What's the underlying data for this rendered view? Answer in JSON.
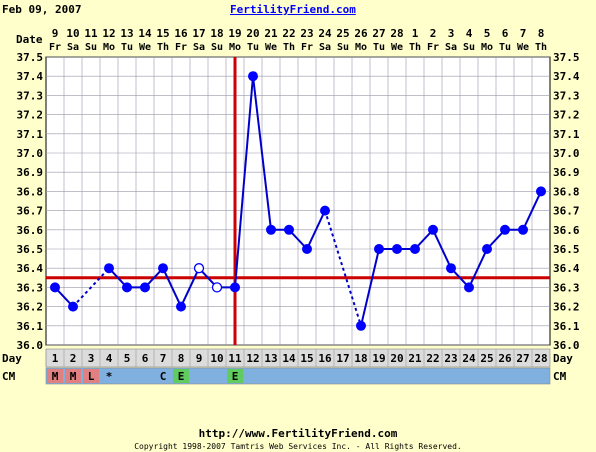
{
  "header": {
    "date": "Feb 09, 2007",
    "site": "FertilityFriend.com"
  },
  "footer": {
    "url": "http://www.FertilityFriend.com",
    "copyright": "Copyright 1998-2007 Tamtris Web Services Inc. - All Rights Reserved."
  },
  "colors": {
    "background": "#ffffcc",
    "plot_background": "#ffffff",
    "grid": "#9999aa",
    "line": "#0000cc",
    "marker": "#0000ff",
    "reference": "#cc0000",
    "cm_row": "#80b0e0",
    "cm_red": "#e08080",
    "cm_green": "#60cc60",
    "day_row": "#dcdcdc"
  },
  "chart_data": {
    "type": "line",
    "title": "",
    "row_labels": {
      "date": "Date",
      "day": "Day",
      "cm": "CM"
    },
    "dates": [
      "9",
      "10",
      "11",
      "12",
      "13",
      "14",
      "15",
      "16",
      "17",
      "18",
      "19",
      "20",
      "21",
      "22",
      "23",
      "24",
      "25",
      "26",
      "27",
      "28",
      "1",
      "2",
      "3",
      "4",
      "5",
      "6",
      "7",
      "8"
    ],
    "weekdays": [
      "Fr",
      "Sa",
      "Su",
      "Mo",
      "Tu",
      "We",
      "Th",
      "Fr",
      "Sa",
      "Su",
      "Mo",
      "Tu",
      "We",
      "Th",
      "Fr",
      "Sa",
      "Su",
      "Mo",
      "Tu",
      "We",
      "Th",
      "Fr",
      "Sa",
      "Su",
      "Mo",
      "Tu",
      "We",
      "Th"
    ],
    "cycle_days": [
      "1",
      "2",
      "3",
      "4",
      "5",
      "6",
      "7",
      "8",
      "9",
      "10",
      "11",
      "12",
      "13",
      "14",
      "15",
      "16",
      "17",
      "18",
      "19",
      "20",
      "21",
      "22",
      "23",
      "24",
      "25",
      "26",
      "27",
      "28"
    ],
    "ylim": [
      36.0,
      37.5
    ],
    "yticks": [
      "36.0",
      "36.1",
      "36.2",
      "36.3",
      "36.4",
      "36.5",
      "36.6",
      "36.7",
      "36.8",
      "36.9",
      "37.0",
      "37.1",
      "37.2",
      "37.3",
      "37.4",
      "37.5"
    ],
    "temperatures": [
      {
        "day": 1,
        "temp": 36.3,
        "kind": "filled"
      },
      {
        "day": 2,
        "temp": 36.2,
        "kind": "filled"
      },
      {
        "day": 4,
        "temp": 36.4,
        "kind": "filled"
      },
      {
        "day": 5,
        "temp": 36.3,
        "kind": "filled"
      },
      {
        "day": 6,
        "temp": 36.3,
        "kind": "filled"
      },
      {
        "day": 7,
        "temp": 36.4,
        "kind": "filled"
      },
      {
        "day": 8,
        "temp": 36.2,
        "kind": "filled"
      },
      {
        "day": 9,
        "temp": 36.4,
        "kind": "open"
      },
      {
        "day": 10,
        "temp": 36.3,
        "kind": "open"
      },
      {
        "day": 11,
        "temp": 36.3,
        "kind": "filled"
      },
      {
        "day": 12,
        "temp": 37.4,
        "kind": "filled"
      },
      {
        "day": 13,
        "temp": 36.6,
        "kind": "filled"
      },
      {
        "day": 14,
        "temp": 36.6,
        "kind": "filled"
      },
      {
        "day": 15,
        "temp": 36.5,
        "kind": "filled"
      },
      {
        "day": 16,
        "temp": 36.7,
        "kind": "filled"
      },
      {
        "day": 18,
        "temp": 36.1,
        "kind": "filled"
      },
      {
        "day": 19,
        "temp": 36.5,
        "kind": "filled"
      },
      {
        "day": 20,
        "temp": 36.5,
        "kind": "filled"
      },
      {
        "day": 21,
        "temp": 36.5,
        "kind": "filled"
      },
      {
        "day": 22,
        "temp": 36.6,
        "kind": "filled"
      },
      {
        "day": 23,
        "temp": 36.4,
        "kind": "filled"
      },
      {
        "day": 24,
        "temp": 36.3,
        "kind": "filled"
      },
      {
        "day": 25,
        "temp": 36.5,
        "kind": "filled"
      },
      {
        "day": 26,
        "temp": 36.6,
        "kind": "filled"
      },
      {
        "day": 27,
        "temp": 36.6,
        "kind": "filled"
      },
      {
        "day": 28,
        "temp": 36.8,
        "kind": "filled"
      }
    ],
    "connections": [
      {
        "from": 1,
        "to": 2,
        "style": "solid"
      },
      {
        "from": 2,
        "to": 4,
        "style": "dotted"
      },
      {
        "from": 4,
        "to": 5,
        "style": "solid"
      },
      {
        "from": 5,
        "to": 6,
        "style": "solid"
      },
      {
        "from": 6,
        "to": 7,
        "style": "solid"
      },
      {
        "from": 7,
        "to": 8,
        "style": "solid"
      },
      {
        "from": 8,
        "to": 9,
        "style": "solid"
      },
      {
        "from": 9,
        "to": 10,
        "style": "solid"
      },
      {
        "from": 10,
        "to": 11,
        "style": "solid"
      },
      {
        "from": 11,
        "to": 12,
        "style": "solid"
      },
      {
        "from": 12,
        "to": 13,
        "style": "solid"
      },
      {
        "from": 13,
        "to": 14,
        "style": "solid"
      },
      {
        "from": 14,
        "to": 15,
        "style": "solid"
      },
      {
        "from": 15,
        "to": 16,
        "style": "solid"
      },
      {
        "from": 16,
        "to": 18,
        "style": "dotted"
      },
      {
        "from": 18,
        "to": 19,
        "style": "solid"
      },
      {
        "from": 19,
        "to": 20,
        "style": "solid"
      },
      {
        "from": 20,
        "to": 21,
        "style": "solid"
      },
      {
        "from": 21,
        "to": 22,
        "style": "solid"
      },
      {
        "from": 22,
        "to": 23,
        "style": "solid"
      },
      {
        "from": 23,
        "to": 24,
        "style": "solid"
      },
      {
        "from": 24,
        "to": 25,
        "style": "solid"
      },
      {
        "from": 25,
        "to": 26,
        "style": "solid"
      },
      {
        "from": 26,
        "to": 27,
        "style": "solid"
      },
      {
        "from": 27,
        "to": 28,
        "style": "solid"
      }
    ],
    "coverline_temp": 36.35,
    "ovulation_day": 11,
    "cm": [
      "M",
      "M",
      "L",
      "*",
      "",
      "",
      "C",
      "E",
      "",
      "",
      "E",
      "",
      "",
      "",
      "",
      "",
      "",
      "",
      "",
      "",
      "",
      "",
      "",
      "",
      "",
      "",
      "",
      ""
    ],
    "cm_highlight": [
      "red",
      "red",
      "red",
      "",
      "",
      "",
      "",
      "green",
      "",
      "",
      "green",
      "",
      "",
      "",
      "",
      "",
      "",
      "",
      "",
      "",
      "",
      "",
      "",
      "",
      "",
      "",
      "",
      ""
    ],
    "grid": true
  }
}
